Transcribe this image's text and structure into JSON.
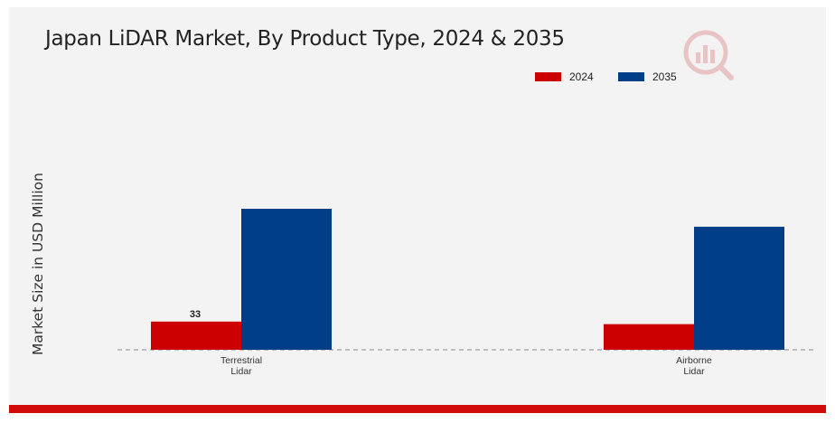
{
  "chart_data": {
    "type": "bar",
    "title": "Japan LiDAR Market, By Product Type, 2024 & 2035",
    "xlabel": "",
    "ylabel": "Market Size in USD Million",
    "categories": [
      [
        "Terrestrial",
        "Lidar"
      ],
      [
        "Airborne",
        "Lidar"
      ]
    ],
    "series": [
      {
        "name": "2024",
        "color": "#cc0000",
        "values": [
          33,
          30
        ]
      },
      {
        "name": "2035",
        "color": "#003f87",
        "values": [
          165,
          144
        ]
      }
    ],
    "data_labels": [
      {
        "series": 0,
        "category": 0,
        "text": "33"
      }
    ],
    "ylim": [
      0,
      165
    ],
    "grid": false,
    "legend": "top-right"
  }
}
